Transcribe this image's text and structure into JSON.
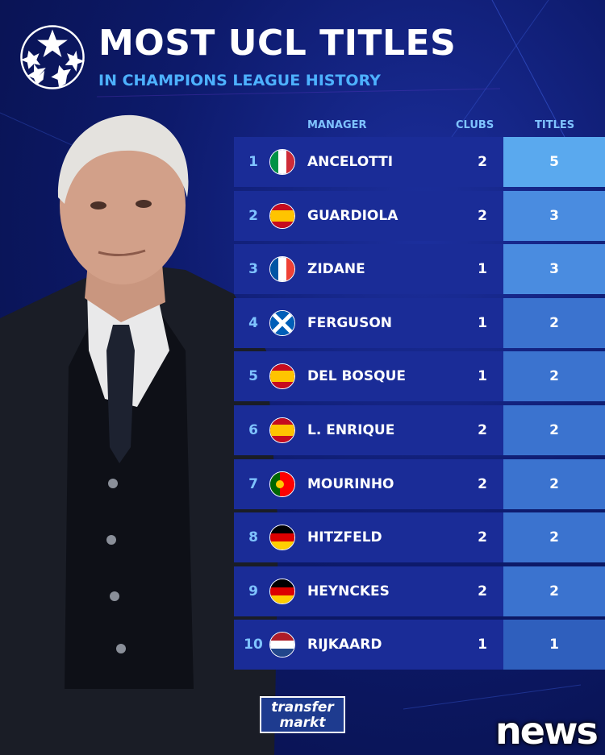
{
  "header": {
    "title": "MOST UCL TITLES",
    "subtitle": "IN CHAMPIONS LEAGUE HISTORY"
  },
  "columns": {
    "manager": "MANAGER",
    "clubs": "CLUBS",
    "titles": "TITLES"
  },
  "rows": [
    {
      "rank": "1",
      "flag": "italy",
      "name": "ANCELOTTI",
      "clubs": "2",
      "titles": "5",
      "titles_color": "#5aa9ee"
    },
    {
      "rank": "2",
      "flag": "spain",
      "name": "GUARDIOLA",
      "clubs": "2",
      "titles": "3",
      "titles_color": "#4a8ce0"
    },
    {
      "rank": "3",
      "flag": "france",
      "name": "ZIDANE",
      "clubs": "1",
      "titles": "3",
      "titles_color": "#4a8ce0"
    },
    {
      "rank": "4",
      "flag": "scotland",
      "name": "FERGUSON",
      "clubs": "1",
      "titles": "2",
      "titles_color": "#3b73cf"
    },
    {
      "rank": "5",
      "flag": "spain",
      "name": "DEL BOSQUE",
      "clubs": "1",
      "titles": "2",
      "titles_color": "#3b73cf"
    },
    {
      "rank": "6",
      "flag": "spain",
      "name": "L. ENRIQUE",
      "clubs": "2",
      "titles": "2",
      "titles_color": "#3b73cf"
    },
    {
      "rank": "7",
      "flag": "portugal",
      "name": "MOURINHO",
      "clubs": "2",
      "titles": "2",
      "titles_color": "#3b73cf"
    },
    {
      "rank": "8",
      "flag": "germany",
      "name": "HITZFELD",
      "clubs": "2",
      "titles": "2",
      "titles_color": "#3b73cf"
    },
    {
      "rank": "9",
      "flag": "germany",
      "name": "HEYNCKES",
      "clubs": "2",
      "titles": "2",
      "titles_color": "#3b73cf"
    },
    {
      "rank": "10",
      "flag": "netherlands",
      "name": "RIJKAARD",
      "clubs": "1",
      "titles": "1",
      "titles_color": "#2f5fbd"
    }
  ],
  "brand": {
    "line1": "transfer",
    "line2": "markt"
  },
  "watermark": "news"
}
